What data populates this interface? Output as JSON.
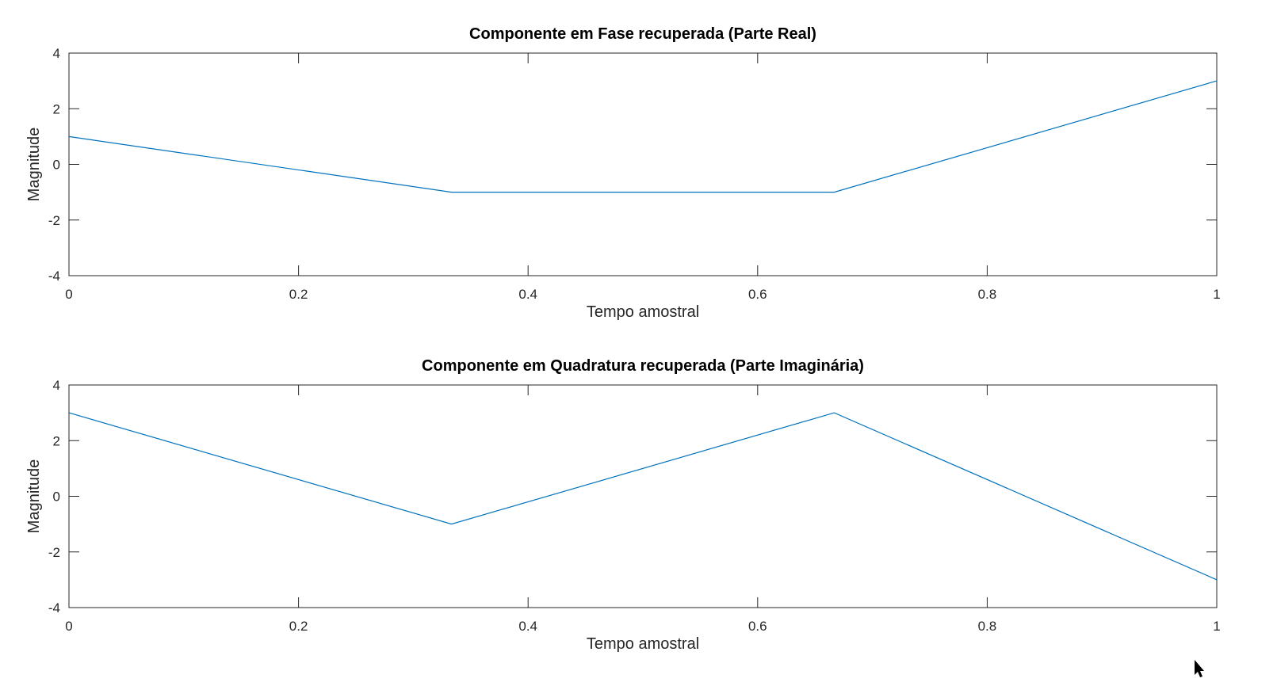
{
  "chart_data": [
    {
      "type": "line",
      "title": "Componente em Fase recuperada (Parte Real)",
      "xlabel": "Tempo amostral",
      "ylabel": "Magnitude",
      "xlim": [
        0,
        1
      ],
      "ylim": [
        -4,
        4
      ],
      "xticks": [
        0,
        0.2,
        0.4,
        0.6,
        0.8,
        1
      ],
      "xtick_labels": [
        "0",
        "0.2",
        "0.4",
        "0.6",
        "0.8",
        "1"
      ],
      "yticks": [
        -4,
        -2,
        0,
        2,
        4
      ],
      "ytick_labels": [
        "-4",
        "-2",
        "0",
        "2",
        "4"
      ],
      "grid": false,
      "series": [
        {
          "x": [
            0,
            0.3333,
            0.6667,
            1
          ],
          "y": [
            1,
            -1,
            -1,
            3
          ],
          "color": "#0072BD"
        }
      ]
    },
    {
      "type": "line",
      "title": "Componente em Quadratura recuperada (Parte Imaginária)",
      "xlabel": "Tempo amostral",
      "ylabel": "Magnitude",
      "xlim": [
        0,
        1
      ],
      "ylim": [
        -4,
        4
      ],
      "xticks": [
        0,
        0.2,
        0.4,
        0.6,
        0.8,
        1
      ],
      "xtick_labels": [
        "0",
        "0.2",
        "0.4",
        "0.6",
        "0.8",
        "1"
      ],
      "yticks": [
        -4,
        -2,
        0,
        2,
        4
      ],
      "ytick_labels": [
        "-4",
        "-2",
        "0",
        "2",
        "4"
      ],
      "grid": false,
      "series": [
        {
          "x": [
            0,
            0.3333,
            0.6667,
            1
          ],
          "y": [
            3,
            -1,
            3,
            -3
          ],
          "color": "#0072BD"
        }
      ]
    }
  ]
}
